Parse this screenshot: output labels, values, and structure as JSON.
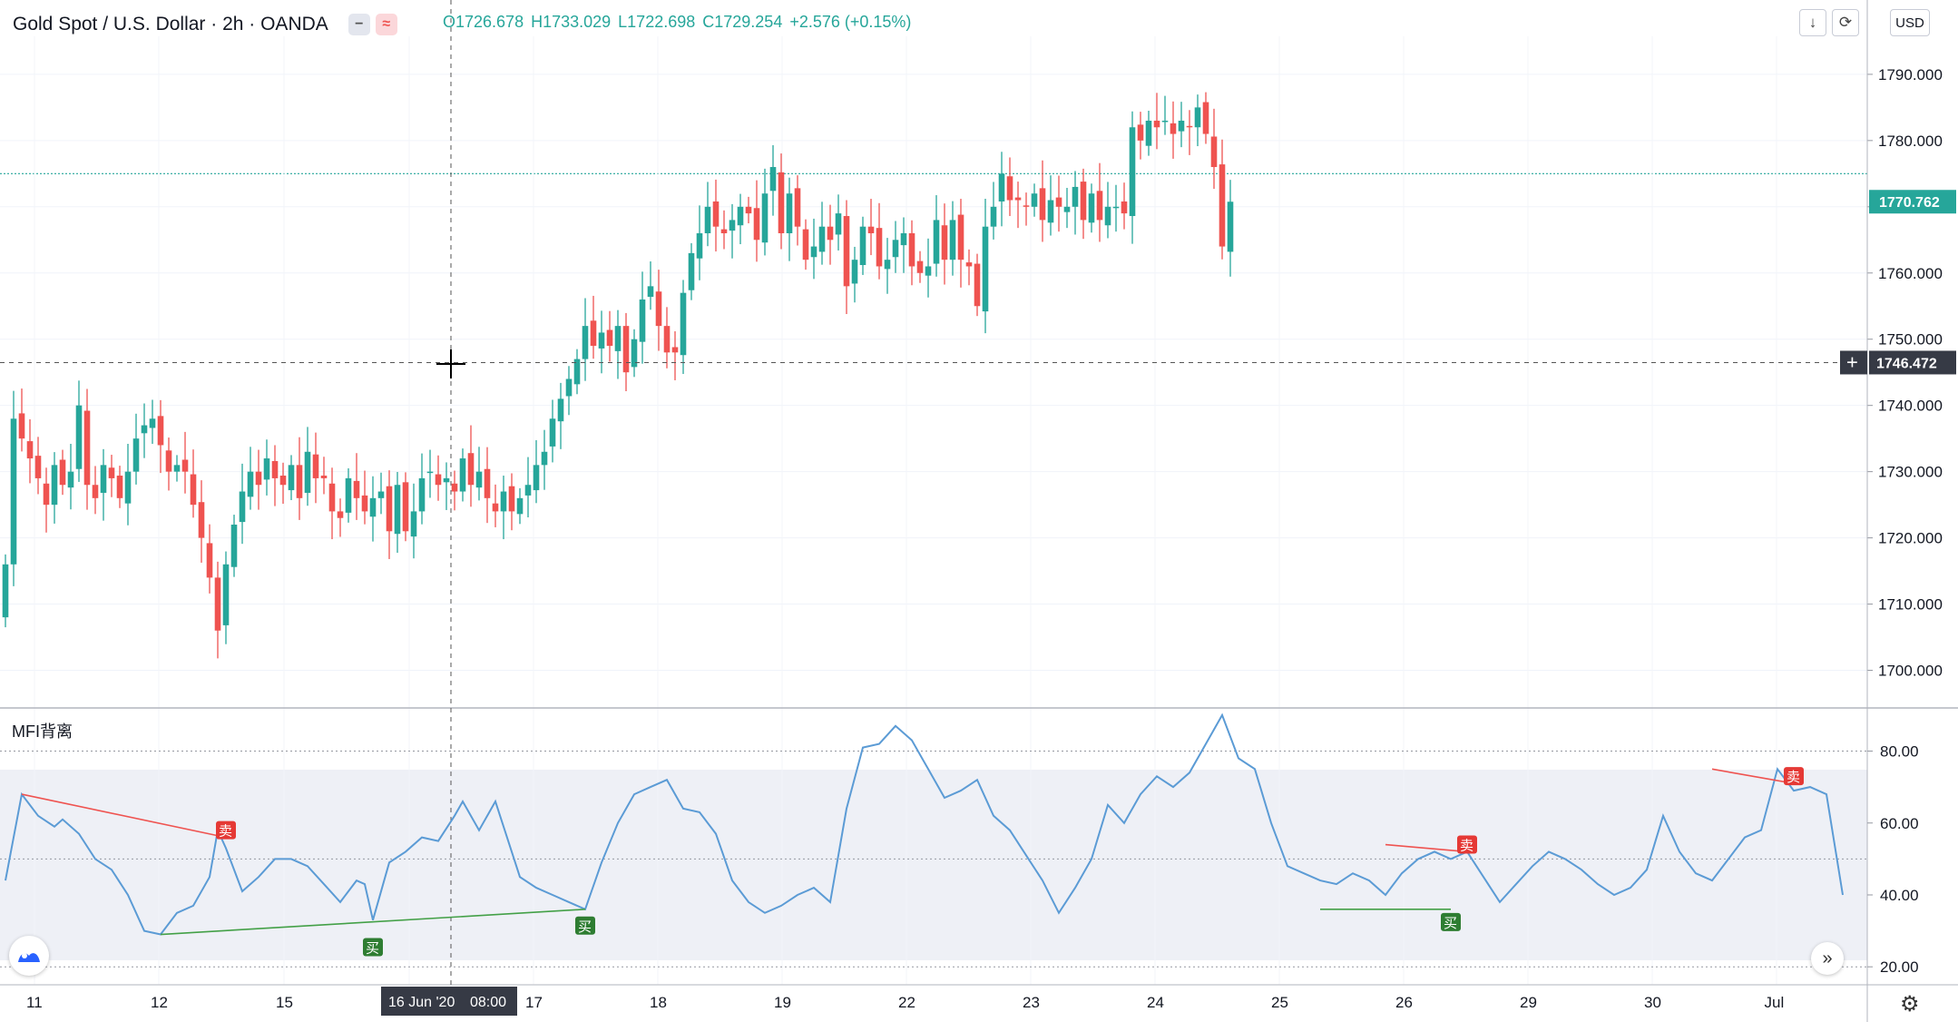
{
  "header": {
    "symbol": "Gold Spot / U.S. Dollar · 2h · OANDA",
    "open": "O1726.678",
    "high": "H1733.029",
    "low": "L1722.698",
    "close": "C1729.254",
    "change": "+2.576 (+0.15%)"
  },
  "toolbar": {
    "currency": "USD"
  },
  "indicator": {
    "title": "MFI背离"
  },
  "icons": [
    "minus-icon",
    "wave-icon",
    "arrow-down-icon",
    "refresh-icon",
    "tradingview-logo-icon",
    "forward-icon",
    "gear-icon",
    "crosshair-icon"
  ],
  "colors": {
    "up": "#26a69a",
    "down": "#ef5350",
    "mfi_line": "#5b9bd5",
    "bear_div": "#ef5350",
    "bull_div": "#43a047",
    "price_label": "#26a69a",
    "crosshair_label": "#363a45"
  },
  "chart_data": [
    {
      "type": "candlestick",
      "title": "Gold Spot / U.S. Dollar · 2h · OANDA",
      "ylim": [
        1695,
        1793
      ],
      "yticks": [
        "1790.000",
        "1780.000",
        "1770.000",
        "1760.000",
        "1750.000",
        "1740.000",
        "1730.000",
        "1720.000",
        "1710.000",
        "1700.000"
      ],
      "xticks": [
        "11",
        "12",
        "15",
        "16 Jun '20",
        "17",
        "18",
        "19",
        "22",
        "23",
        "24",
        "25",
        "26",
        "29",
        "30",
        "Jul"
      ],
      "crosshair_time_label": "08:00",
      "reference_line": 1775,
      "current_price": "1770.762",
      "crosshair_price": "1746.472",
      "crosshair_value": 1746.472,
      "closes": [
        1716,
        1738,
        1735,
        1732,
        1729,
        1725,
        1731,
        1728,
        1730,
        1740,
        1728,
        1726,
        1731,
        1729,
        1726,
        1730,
        1735,
        1737,
        1738,
        1734,
        1730,
        1731,
        1730,
        1725,
        1720,
        1714,
        1706,
        1716,
        1722,
        1727,
        1730,
        1728,
        1732,
        1729,
        1728,
        1731,
        1726,
        1733,
        1729,
        1729,
        1724,
        1723,
        1729,
        1726,
        1724,
        1726,
        1727,
        1721,
        1728,
        1721,
        1724,
        1729,
        1730,
        1728,
        1729,
        1727,
        1732,
        1728,
        1730,
        1726,
        1724,
        1727,
        1724,
        1726,
        1728,
        1731,
        1733,
        1738,
        1741,
        1744,
        1747,
        1752,
        1749,
        1751,
        1749,
        1752,
        1745,
        1750,
        1756,
        1758,
        1752,
        1748,
        1748,
        1757,
        1763,
        1766,
        1770,
        1767,
        1766,
        1768,
        1770,
        1769,
        1765,
        1772,
        1776,
        1766,
        1772,
        1767,
        1762,
        1764,
        1767,
        1765,
        1769,
        1758,
        1762,
        1767,
        1766,
        1761,
        1762,
        1765,
        1766,
        1761,
        1760,
        1761,
        1768,
        1762,
        1768,
        1762,
        1761,
        1755,
        1767,
        1770,
        1775,
        1771,
        1771,
        1770,
        1772,
        1768,
        1771,
        1770,
        1770,
        1773,
        1768,
        1772,
        1768,
        1770,
        1770,
        1769,
        1782,
        1780,
        1783,
        1782,
        1783,
        1781,
        1783,
        1782,
        1785,
        1781,
        1776,
        1764,
        1770.762
      ]
    },
    {
      "type": "line",
      "title": "MFI背离",
      "ylim": [
        15,
        92
      ],
      "yticks": [
        "80.00",
        "60.00",
        "40.00",
        "20.00"
      ],
      "guide_levels": [
        80,
        50,
        20
      ],
      "series": [
        {
          "x": [
            0,
            2,
            4,
            6,
            7,
            9,
            11,
            13,
            15,
            17,
            19,
            21,
            23,
            25,
            26,
            27,
            29,
            31,
            33,
            35,
            37,
            39,
            41,
            43,
            44,
            45,
            47,
            49,
            51,
            53,
            55,
            56,
            58,
            60,
            62,
            63,
            65,
            67,
            69,
            71,
            73,
            75,
            77,
            79,
            81,
            83,
            85,
            87,
            89,
            91,
            93,
            95,
            97,
            99,
            101,
            103,
            105,
            107,
            109,
            111,
            113,
            115,
            117,
            119,
            121,
            123,
            125,
            127,
            129,
            131,
            133,
            135,
            137,
            139,
            141,
            143,
            145,
            147,
            149,
            151,
            153,
            155,
            157,
            159,
            161,
            163,
            165,
            167,
            169,
            171,
            173,
            175,
            177,
            179,
            181,
            183,
            185,
            187,
            189,
            191,
            193,
            195,
            197,
            199,
            201,
            203,
            205,
            207,
            209,
            211,
            213,
            215,
            217,
            219,
            221,
            223,
            225
          ],
          "values": [
            44,
            68,
            62,
            59,
            61,
            57,
            50,
            47,
            40,
            30,
            29,
            35,
            37,
            45,
            58,
            53,
            41,
            45,
            50,
            50,
            48,
            43,
            38,
            44,
            43,
            33,
            49,
            52,
            56,
            55,
            62,
            66,
            58,
            66,
            52,
            45,
            42,
            40,
            38,
            36,
            49,
            60,
            68,
            70,
            72,
            64,
            63,
            57,
            44,
            38,
            35,
            37,
            40,
            42,
            38,
            64,
            81,
            82,
            87,
            83,
            75,
            67,
            69,
            72,
            62,
            58,
            51,
            44,
            35,
            42,
            50,
            65,
            60,
            68,
            73,
            70,
            74,
            82,
            90,
            78,
            75,
            60,
            48,
            46,
            44,
            43,
            46,
            44,
            40,
            46,
            50,
            52,
            50,
            52,
            45,
            38,
            43,
            48,
            52,
            50,
            47,
            43,
            40,
            42,
            47,
            62,
            52,
            46,
            44,
            50,
            56,
            58,
            75,
            69,
            70,
            68,
            40
          ]
        }
      ],
      "markers": [
        {
          "label": "卖",
          "x": 27,
          "value": 56,
          "kind": "bear"
        },
        {
          "label": "买",
          "x": 45,
          "value": 29,
          "kind": "bull"
        },
        {
          "label": "买",
          "x": 71,
          "value": 35,
          "kind": "bull"
        },
        {
          "label": "卖",
          "x": 179,
          "value": 52,
          "kind": "bear"
        },
        {
          "label": "买",
          "x": 177,
          "value": 36,
          "kind": "bull"
        },
        {
          "label": "卖",
          "x": 219,
          "value": 71,
          "kind": "bear"
        }
      ],
      "divergence_lines": [
        {
          "kind": "bear",
          "from": [
            2,
            68
          ],
          "to": [
            27,
            56
          ]
        },
        {
          "kind": "bull",
          "from": [
            19,
            29
          ],
          "to": [
            71,
            36
          ]
        },
        {
          "kind": "bear",
          "from": [
            169,
            54
          ],
          "to": [
            179,
            52
          ]
        },
        {
          "kind": "bull",
          "from": [
            161,
            36
          ],
          "to": [
            177,
            36
          ]
        },
        {
          "kind": "bear",
          "from": [
            209,
            75
          ],
          "to": [
            219,
            71
          ]
        }
      ]
    }
  ]
}
